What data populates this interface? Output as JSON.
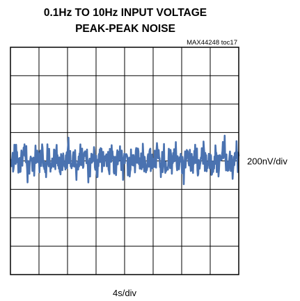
{
  "chart_data": {
    "type": "line",
    "title_line1": "0.1Hz TO 10Hz INPUT VOLTAGE",
    "title_line2": "PEAK-PEAK NOISE",
    "figure_id": "MAX44248 toc17",
    "xlabel": "4s/div",
    "ylabel": "200nV/div",
    "grid": true,
    "x_divisions": 8,
    "y_divisions": 8,
    "series": [
      {
        "color": "#4a72b0",
        "values": [
          0.05,
          -0.1,
          0.3,
          -0.25,
          0.12,
          0.4,
          -0.35,
          0.08,
          -0.15,
          0.22,
          -0.05,
          0.35,
          -0.4,
          0.18,
          -0.22,
          0.1,
          0.28,
          -0.3,
          0.05,
          -0.12,
          0.45,
          -0.2,
          0.15,
          -0.38,
          0.25,
          -0.08,
          0.32,
          -0.28,
          0.02,
          0.2,
          -0.45,
          0.38,
          -0.1,
          0.15,
          -0.25,
          0.42,
          -0.32,
          0.08,
          0.22,
          -0.18,
          0.3,
          -0.4,
          0.12,
          -0.05,
          0.35,
          -0.22,
          0.18,
          -0.35,
          0.28,
          -0.12,
          0.05,
          0.4,
          -0.28,
          0.15,
          -0.42,
          0.22,
          -0.08,
          0.33,
          -0.18,
          0.1,
          -0.3,
          0.25,
          0.02,
          -0.22,
          0.38,
          -0.35,
          0.12,
          0.28,
          -0.15,
          0.05,
          -0.4,
          0.3,
          -0.2,
          0.18,
          0.45,
          -0.25,
          0.08,
          -0.32,
          0.35,
          -0.05
        ]
      }
    ]
  }
}
